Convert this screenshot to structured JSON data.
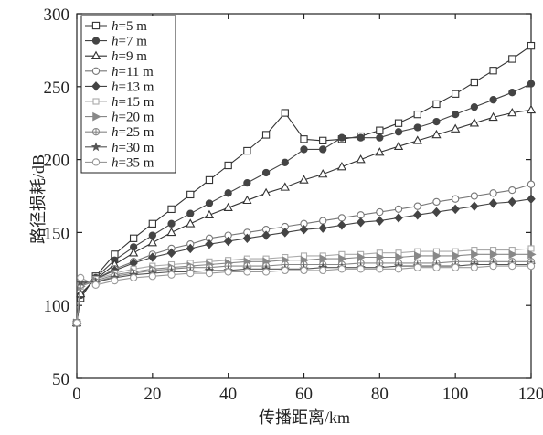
{
  "chart_data": {
    "type": "line",
    "title": "",
    "xlabel": "传播距离/km",
    "ylabel": "路径损耗/dB",
    "xlim": [
      0,
      120
    ],
    "ylim": [
      50,
      300
    ],
    "xticks": [
      0,
      20,
      40,
      60,
      80,
      100,
      120
    ],
    "yticks": [
      50,
      100,
      150,
      200,
      250,
      300
    ],
    "grid": false,
    "legend_position": "top-left",
    "x": [
      0,
      1,
      5,
      10,
      15,
      20,
      25,
      30,
      35,
      40,
      45,
      50,
      55,
      60,
      65,
      70,
      75,
      80,
      85,
      90,
      95,
      100,
      105,
      110,
      115,
      120
    ],
    "series": [
      {
        "var": "h",
        "name": "=5 m",
        "marker": "square-open",
        "values": [
          88,
          105,
          120,
          135,
          146,
          156,
          166,
          176,
          186,
          196,
          206,
          217,
          232,
          214,
          213,
          214,
          216,
          220,
          225,
          231,
          238,
          245,
          253,
          261,
          269,
          278
        ]
      },
      {
        "var": "h",
        "name": "=7 m",
        "marker": "circle-filled",
        "values": [
          88,
          107,
          119,
          131,
          140,
          148,
          156,
          163,
          170,
          177,
          184,
          191,
          198,
          207,
          207,
          215,
          215,
          215,
          219,
          222,
          226,
          231,
          236,
          241,
          246,
          252
        ]
      },
      {
        "var": "h",
        "name": "=9 m",
        "marker": "triangle-open",
        "values": [
          88,
          108,
          118,
          128,
          136,
          143,
          150,
          156,
          162,
          167,
          172,
          177,
          181,
          186,
          190,
          195,
          200,
          205,
          209,
          213,
          217,
          221,
          225,
          229,
          232,
          234
        ]
      },
      {
        "var": "h",
        "name": "=11 m",
        "marker": "circle-open",
        "values": [
          88,
          115,
          118,
          125,
          130,
          135,
          139,
          142,
          146,
          148,
          150,
          152,
          154,
          156,
          158,
          160,
          162,
          164,
          166,
          168,
          171,
          173,
          175,
          177,
          179,
          183
        ]
      },
      {
        "var": "h",
        "name": "=13 m",
        "marker": "diamond-filled",
        "values": [
          88,
          114,
          118,
          124,
          129,
          133,
          136,
          139,
          142,
          144,
          146,
          148,
          150,
          152,
          153,
          155,
          157,
          158,
          160,
          162,
          164,
          166,
          168,
          170,
          171,
          173
        ]
      },
      {
        "var": "h",
        "name": "=15 m",
        "marker": "square-open-small",
        "values": [
          88,
          113,
          118,
          122,
          125,
          127,
          128,
          129,
          130,
          131,
          132,
          132,
          133,
          134,
          134,
          135,
          135,
          136,
          136,
          137,
          137,
          137,
          138,
          138,
          138,
          139
        ]
      },
      {
        "var": "h",
        "name": "=20 m",
        "marker": "triangle-right-filled",
        "values": [
          88,
          113,
          117,
          121,
          123,
          125,
          126,
          127,
          128,
          129,
          130,
          130,
          131,
          131,
          132,
          132,
          133,
          133,
          133,
          134,
          134,
          134,
          135,
          135,
          135,
          135
        ]
      },
      {
        "var": "h",
        "name": "=25 m",
        "marker": "circle-crossed",
        "values": [
          88,
          114,
          116,
          120,
          122,
          124,
          125,
          126,
          126,
          127,
          127,
          127,
          128,
          128,
          128,
          128,
          129,
          129,
          129,
          129,
          129,
          130,
          130,
          130,
          130,
          130
        ]
      },
      {
        "var": "h",
        "name": "=30 m",
        "marker": "star-filled",
        "values": [
          88,
          116,
          116,
          119,
          121,
          122,
          123,
          123,
          124,
          124,
          125,
          125,
          125,
          125,
          126,
          126,
          126,
          126,
          127,
          127,
          127,
          127,
          128,
          128,
          128,
          128
        ]
      },
      {
        "var": "h",
        "name": "=35 m",
        "marker": "circle-open-gray",
        "values": [
          88,
          119,
          114,
          117,
          119,
          120,
          121,
          122,
          122,
          123,
          123,
          123,
          124,
          124,
          124,
          125,
          125,
          125,
          125,
          126,
          126,
          126,
          126,
          127,
          127,
          127
        ]
      }
    ]
  }
}
